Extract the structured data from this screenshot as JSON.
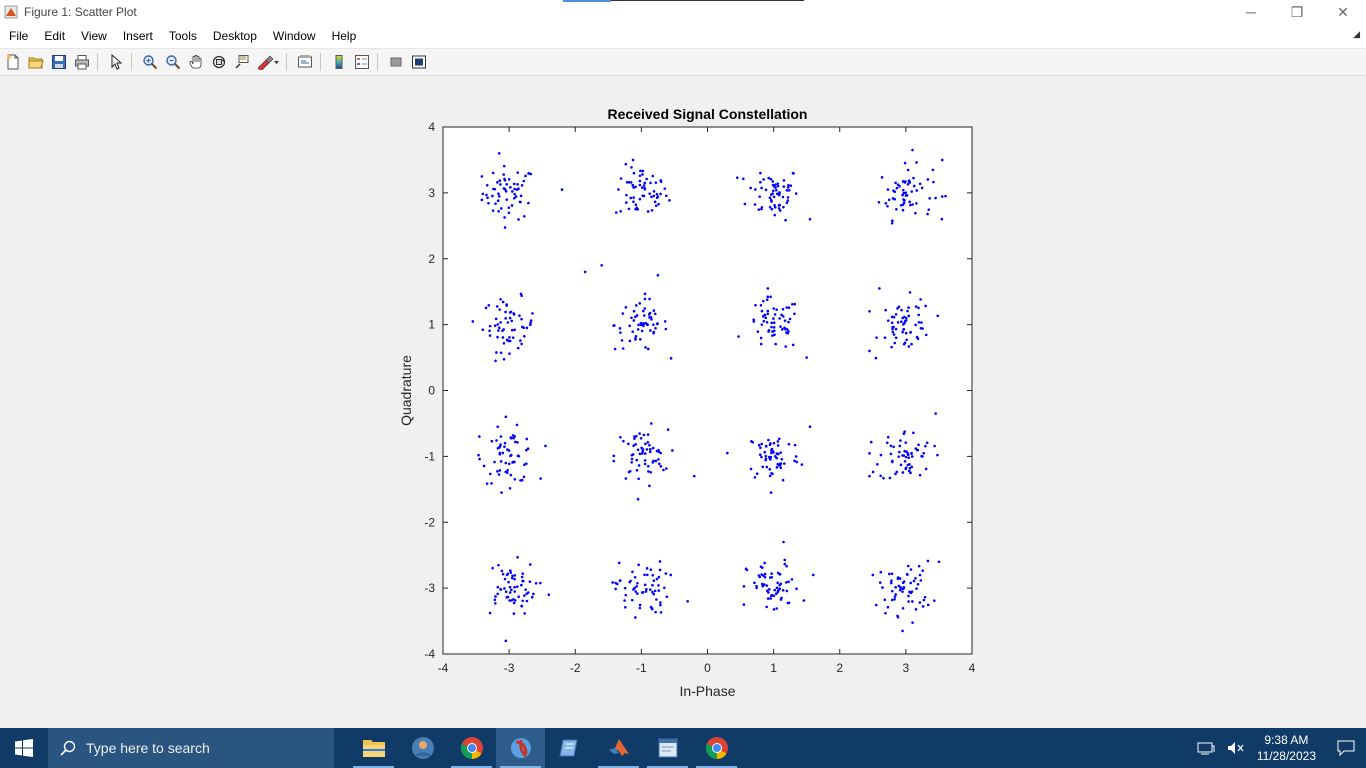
{
  "window": {
    "title": "Figure 1: Scatter Plot",
    "controls": {
      "minimize": "─",
      "restore": "❐",
      "close": "✕"
    }
  },
  "menu": {
    "items": [
      "File",
      "Edit",
      "View",
      "Insert",
      "Tools",
      "Desktop",
      "Window",
      "Help"
    ]
  },
  "toolbar": {
    "buttons": [
      "new-figure-icon",
      "open-icon",
      "save-icon",
      "print-icon",
      "edit-plot-arrow-icon",
      "zoom-in-icon",
      "zoom-out-icon",
      "pan-icon",
      "rotate-3d-icon",
      "data-cursor-icon",
      "brush-icon",
      "link-plot-icon",
      "insert-colorbar-icon",
      "insert-legend-icon",
      "hide-plot-tools-icon",
      "show-plot-tools-icon"
    ]
  },
  "chart_data": {
    "type": "scatter",
    "title": "Received Signal Constellation",
    "xlabel": "In-Phase",
    "ylabel": "Quadrature",
    "xlim": [
      -4,
      4
    ],
    "ylim": [
      -4,
      4
    ],
    "xticks": [
      -4,
      -3,
      -2,
      -1,
      0,
      1,
      2,
      3,
      4
    ],
    "yticks": [
      -4,
      -3,
      -2,
      -1,
      0,
      1,
      2,
      3,
      4
    ],
    "xtick_labels": [
      "-4",
      "-3",
      "-2",
      "-1",
      "0",
      "1",
      "2",
      "3",
      "4"
    ],
    "ytick_labels": [
      "-4",
      "-3",
      "-2",
      "-1",
      "0",
      "1",
      "2",
      "3",
      "4"
    ],
    "grid": false,
    "marker_color": "#0000ff",
    "cluster_centers": [
      [
        -3,
        3
      ],
      [
        -1,
        3
      ],
      [
        1,
        3
      ],
      [
        3,
        3
      ],
      [
        -3,
        1
      ],
      [
        -1,
        1
      ],
      [
        1,
        1
      ],
      [
        3,
        1
      ],
      [
        -3,
        -1
      ],
      [
        -1,
        -1
      ],
      [
        1,
        -1
      ],
      [
        3,
        -1
      ],
      [
        -3,
        -3
      ],
      [
        -1,
        -3
      ],
      [
        1,
        -3
      ],
      [
        3,
        -3
      ]
    ],
    "points_per_cluster": 60,
    "noise_std": 0.2,
    "outliers": [
      [
        -2.2,
        3.05
      ],
      [
        -3.15,
        3.6
      ],
      [
        0.8,
        3.3
      ],
      [
        1.55,
        2.6
      ],
      [
        3.1,
        3.65
      ],
      [
        3.55,
        3.5
      ],
      [
        3.6,
        2.95
      ],
      [
        -1.85,
        1.8
      ],
      [
        1.5,
        0.5
      ],
      [
        -1.6,
        1.9
      ],
      [
        -0.75,
        1.75
      ],
      [
        2.6,
        1.55
      ],
      [
        2.45,
        0.6
      ],
      [
        -3.45,
        -0.7
      ],
      [
        -3.05,
        -0.4
      ],
      [
        -0.2,
        -1.3
      ],
      [
        -0.85,
        -0.5
      ],
      [
        -1.05,
        -1.65
      ],
      [
        0.3,
        -0.95
      ],
      [
        1.55,
        -0.55
      ],
      [
        2.45,
        -1.3
      ],
      [
        3.45,
        -0.35
      ],
      [
        -2.4,
        -3.1
      ],
      [
        -3.05,
        -3.8
      ],
      [
        -0.3,
        -3.2
      ],
      [
        1.6,
        -2.8
      ],
      [
        1.15,
        -2.3
      ],
      [
        0.55,
        -3.25
      ],
      [
        2.5,
        -2.8
      ],
      [
        3.5,
        -2.6
      ],
      [
        2.95,
        -3.65
      ]
    ]
  },
  "taskbar": {
    "search_placeholder": "Type here to search",
    "time": "9:38 AM",
    "date": "11/28/2023"
  }
}
